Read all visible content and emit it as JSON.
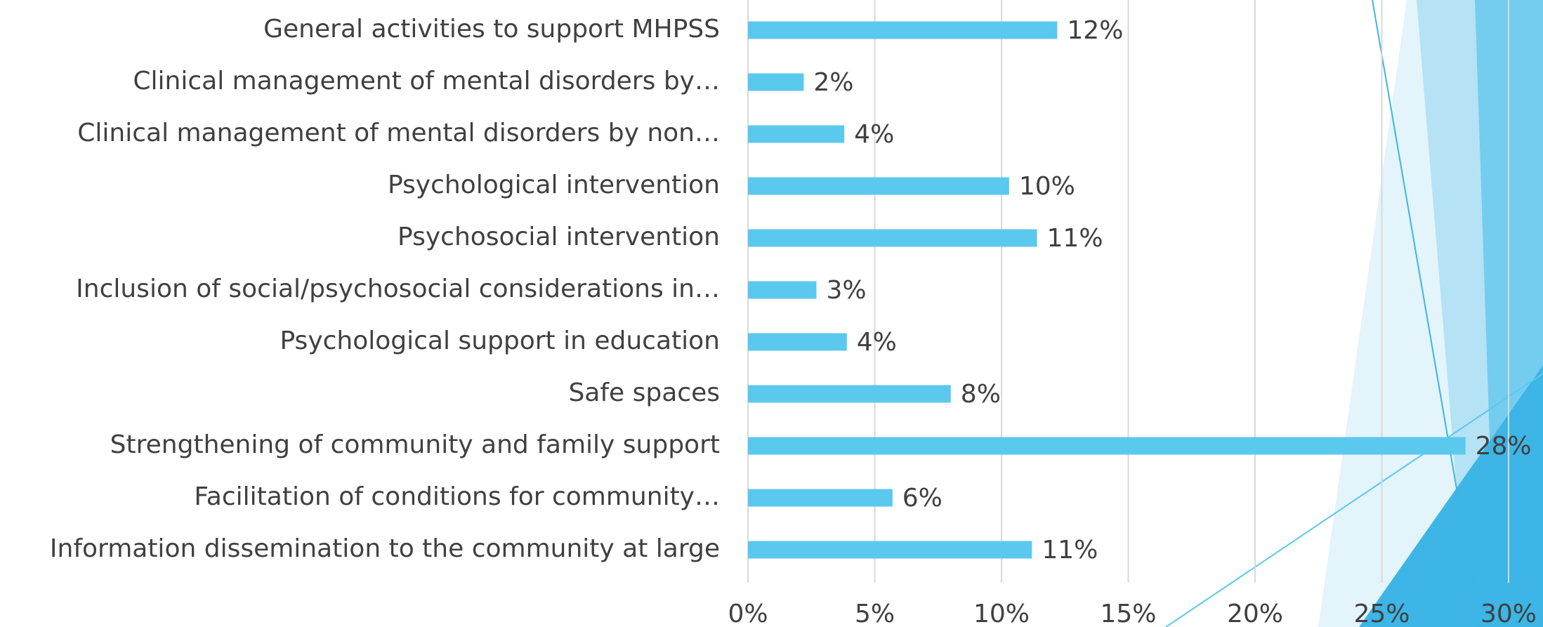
{
  "chart_data": {
    "type": "hbar",
    "categories": [
      "General activities to support MHPSS",
      "Clinical management of mental disorders by…",
      "Clinical management of mental disorders by non…",
      "Psychological intervention",
      "Psychosocial intervention",
      "Inclusion of social/psychosocial considerations in…",
      "Psychological support in education",
      "Safe spaces",
      "Strengthening of community and family support",
      "Facilitation of conditions for community…",
      "Information dissemination to the community at large"
    ],
    "values": [
      12.2,
      2.2,
      3.8,
      10.3,
      11.4,
      2.7,
      3.9,
      8.0,
      28.3,
      5.7,
      11.2
    ],
    "value_labels": [
      "12%",
      "2%",
      "4%",
      "10%",
      "11%",
      "3%",
      "4%",
      "8%",
      "28%",
      "6%",
      "11%"
    ],
    "color": "#5bc8ee",
    "xlim": [
      0,
      30
    ],
    "xticks": [
      {
        "value": 0,
        "label": "0%"
      },
      {
        "value": 5,
        "label": "5%"
      },
      {
        "value": 10,
        "label": "10%"
      },
      {
        "value": 15,
        "label": "15%"
      },
      {
        "value": 20,
        "label": "20%"
      },
      {
        "value": 25,
        "label": "25%"
      },
      {
        "value": 30,
        "label": "30%"
      }
    ],
    "grid": true
  }
}
